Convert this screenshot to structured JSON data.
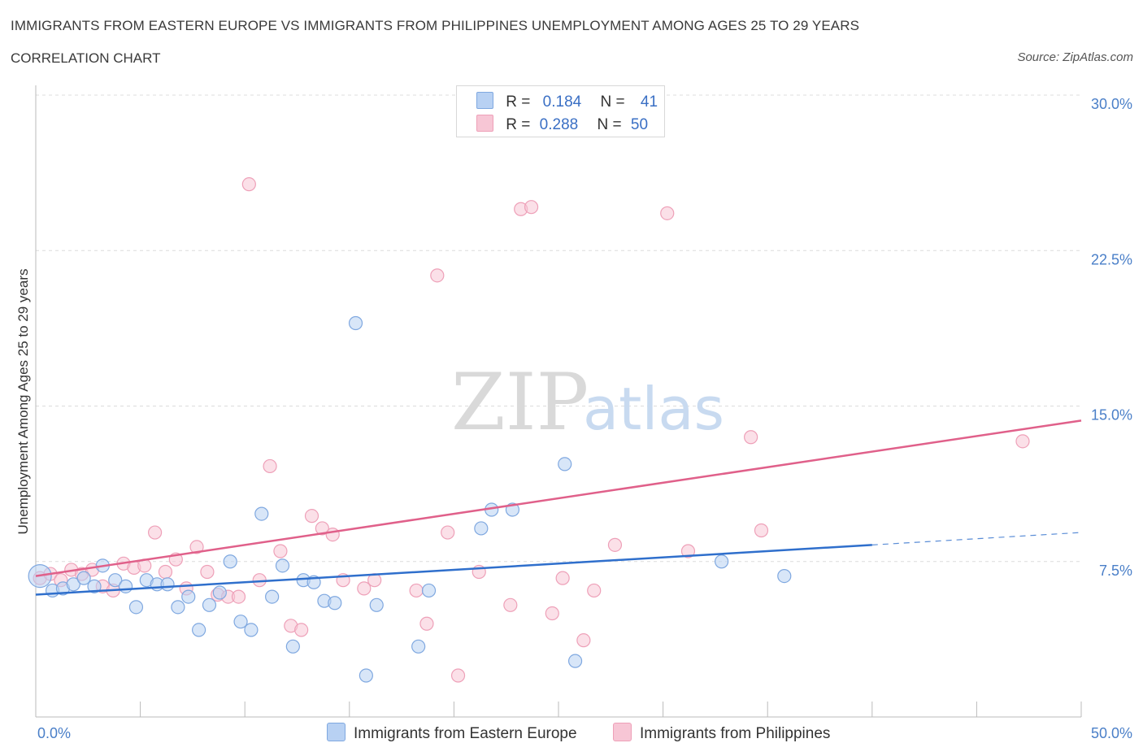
{
  "header": {
    "title": "IMMIGRANTS FROM EASTERN EUROPE VS IMMIGRANTS FROM PHILIPPINES UNEMPLOYMENT AMONG AGES 25 TO 29 YEARS",
    "subtitle": "CORRELATION CHART",
    "source": "Source: ZipAtlas.com"
  },
  "watermark": {
    "zip": "ZIP",
    "atlas": "atlas"
  },
  "legend": {
    "rows": [
      {
        "r_label": "R =",
        "r_value": "0.184",
        "n_label": "N =",
        "n_value": "41"
      },
      {
        "r_label": "R =",
        "r_value": "0.288",
        "n_label": "N =",
        "n_value": "50"
      }
    ]
  },
  "colors": {
    "blue_fill": "#b8d1f3",
    "blue_stroke": "#7fa8e0",
    "blue_line": "#2f6fcc",
    "pink_fill": "#f7c6d5",
    "pink_stroke": "#eea0b8",
    "pink_line": "#e0608a"
  },
  "chart_data": {
    "type": "scatter",
    "title": "IMMIGRANTS FROM EASTERN EUROPE VS IMMIGRANTS FROM PHILIPPINES UNEMPLOYMENT AMONG AGES 25 TO 29 YEARS",
    "xlabel": "",
    "ylabel": "Unemployment Among Ages 25 to 29 years",
    "xlim": [
      0,
      50
    ],
    "ylim": [
      0,
      30
    ],
    "x_tick_labels": [
      "0.0%",
      "50.0%"
    ],
    "y_ticks": [
      7.5,
      15.0,
      22.5,
      30.0
    ],
    "y_tick_labels": [
      "7.5%",
      "15.0%",
      "22.5%",
      "30.0%"
    ],
    "grid": true,
    "series": [
      {
        "name": "Immigrants from Eastern Europe",
        "r": 0.184,
        "n": 41,
        "trend": {
          "x_start": 0,
          "y_start": 5.9,
          "x_solid_end": 40,
          "y_solid_end": 8.3,
          "x_end": 50,
          "y_end": 8.9
        },
        "points": [
          [
            0.2,
            6.8
          ],
          [
            0.8,
            6.1
          ],
          [
            1.3,
            6.2
          ],
          [
            1.8,
            6.4
          ],
          [
            2.3,
            6.7
          ],
          [
            2.8,
            6.3
          ],
          [
            3.2,
            7.3
          ],
          [
            3.8,
            6.6
          ],
          [
            4.3,
            6.3
          ],
          [
            4.8,
            5.3
          ],
          [
            5.3,
            6.6
          ],
          [
            5.8,
            6.4
          ],
          [
            6.3,
            6.4
          ],
          [
            6.8,
            5.3
          ],
          [
            7.3,
            5.8
          ],
          [
            7.8,
            4.2
          ],
          [
            8.3,
            5.4
          ],
          [
            8.8,
            6.0
          ],
          [
            9.3,
            7.5
          ],
          [
            9.8,
            4.6
          ],
          [
            10.3,
            4.2
          ],
          [
            10.8,
            9.8
          ],
          [
            11.3,
            5.8
          ],
          [
            11.8,
            7.3
          ],
          [
            12.3,
            3.4
          ],
          [
            12.8,
            6.6
          ],
          [
            13.3,
            6.5
          ],
          [
            13.8,
            5.6
          ],
          [
            14.3,
            5.5
          ],
          [
            15.3,
            19.0
          ],
          [
            15.8,
            2.0
          ],
          [
            16.3,
            5.4
          ],
          [
            18.3,
            3.4
          ],
          [
            18.8,
            6.1
          ],
          [
            21.3,
            9.1
          ],
          [
            21.8,
            10.0
          ],
          [
            22.8,
            10.0
          ],
          [
            25.3,
            12.2
          ],
          [
            25.8,
            2.7
          ],
          [
            32.8,
            7.5
          ],
          [
            35.8,
            6.8
          ]
        ]
      },
      {
        "name": "Immigrants from Philippines",
        "r": 0.288,
        "n": 50,
        "trend": {
          "x_start": 0,
          "y_start": 6.8,
          "x_end": 50,
          "y_end": 14.3
        },
        "points": [
          [
            0.2,
            6.7
          ],
          [
            0.7,
            6.9
          ],
          [
            1.2,
            6.6
          ],
          [
            1.7,
            7.1
          ],
          [
            2.2,
            6.9
          ],
          [
            2.7,
            7.1
          ],
          [
            3.2,
            6.3
          ],
          [
            3.7,
            6.1
          ],
          [
            4.2,
            7.4
          ],
          [
            4.7,
            7.2
          ],
          [
            5.2,
            7.3
          ],
          [
            5.7,
            8.9
          ],
          [
            6.2,
            7.0
          ],
          [
            6.7,
            7.6
          ],
          [
            7.2,
            6.2
          ],
          [
            7.7,
            8.2
          ],
          [
            8.2,
            7.0
          ],
          [
            8.7,
            5.9
          ],
          [
            9.2,
            5.8
          ],
          [
            9.7,
            5.8
          ],
          [
            10.2,
            25.7
          ],
          [
            10.7,
            6.6
          ],
          [
            11.2,
            12.1
          ],
          [
            11.7,
            8.0
          ],
          [
            12.2,
            4.4
          ],
          [
            12.7,
            4.2
          ],
          [
            13.2,
            9.7
          ],
          [
            13.7,
            9.1
          ],
          [
            14.2,
            8.8
          ],
          [
            14.7,
            6.6
          ],
          [
            15.7,
            6.2
          ],
          [
            16.2,
            6.6
          ],
          [
            18.2,
            6.1
          ],
          [
            18.7,
            4.5
          ],
          [
            19.2,
            21.3
          ],
          [
            19.7,
            8.9
          ],
          [
            20.2,
            2.0
          ],
          [
            21.2,
            7.0
          ],
          [
            22.7,
            5.4
          ],
          [
            23.2,
            24.5
          ],
          [
            23.7,
            24.6
          ],
          [
            24.7,
            5.0
          ],
          [
            25.2,
            6.7
          ],
          [
            26.2,
            3.7
          ],
          [
            26.7,
            6.1
          ],
          [
            27.7,
            8.3
          ],
          [
            30.2,
            24.3
          ],
          [
            31.2,
            8.0
          ],
          [
            34.2,
            13.5
          ],
          [
            34.7,
            9.0
          ]
        ],
        "outliers": [
          [
            47.2,
            13.3
          ]
        ]
      }
    ]
  },
  "bottom_legend": {
    "series_a": "Immigrants from Eastern Europe",
    "series_b": "Immigrants from Philippines"
  }
}
